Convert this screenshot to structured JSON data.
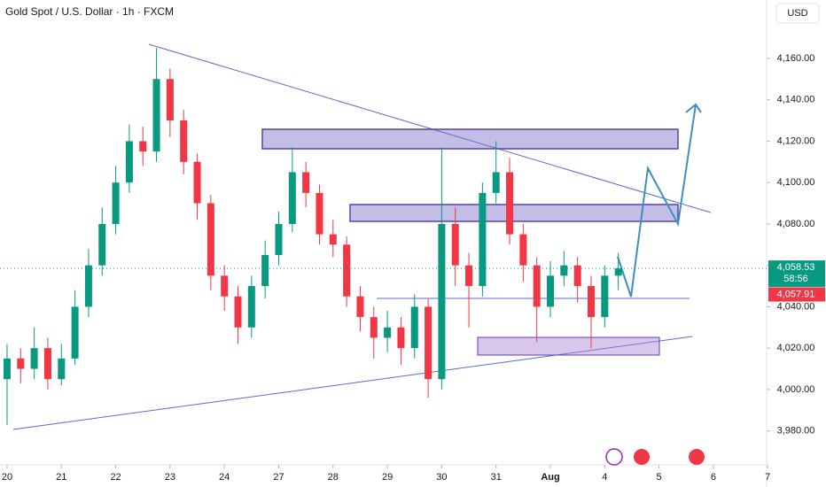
{
  "chart_data": {
    "type": "candlestick",
    "title": "Gold Spot / U.S. Dollar · 1h · FXCM",
    "currency": "USD",
    "up_color": "#089981",
    "down_color": "#f23645",
    "grid": false,
    "x": [
      0,
      0.25,
      0.5,
      0.75,
      1,
      1.25,
      1.5,
      1.75,
      2,
      2.25,
      2.5,
      2.75,
      3,
      3.25,
      3.5,
      3.75,
      4,
      4.25,
      4.5,
      4.75,
      5,
      5.25,
      5.5,
      5.75,
      6,
      6.25,
      6.5,
      6.75,
      7,
      7.25,
      7.5,
      7.75,
      8,
      8.25,
      8.5,
      8.75,
      9,
      9.25,
      9.5,
      9.75,
      10,
      10.25,
      10.5,
      10.75,
      11,
      11.25
    ],
    "open": [
      4005,
      4015,
      4010,
      4020,
      4005,
      4015,
      4040,
      4060,
      4080,
      4100,
      4120,
      4115,
      4150,
      4130,
      4110,
      4090,
      4055,
      4045,
      4030,
      4050,
      4065,
      4080,
      4105,
      4095,
      4075,
      4070,
      4045,
      4035,
      4025,
      4030,
      4020,
      4040,
      4005,
      4080,
      4060,
      4050,
      4095,
      4105,
      4075,
      4060,
      4040,
      4055,
      4060,
      4050,
      4035,
      4055
    ],
    "high": [
      4022,
      4020,
      4030,
      4025,
      4022,
      4048,
      4068,
      4088,
      4108,
      4128,
      4127,
      4165,
      4155,
      4135,
      4114,
      4094,
      4060,
      4050,
      4055,
      4072,
      4086,
      4117,
      4110,
      4099,
      4082,
      4074,
      4050,
      4040,
      4038,
      4035,
      4046,
      4044,
      4117,
      4088,
      4066,
      4100,
      4120,
      4112,
      4080,
      4064,
      4062,
      4067,
      4064,
      4055,
      4060,
      4066
    ],
    "low": [
      3983,
      4003,
      4005,
      4000,
      4002,
      4012,
      4035,
      4055,
      4075,
      4095,
      4108,
      4110,
      4122,
      4104,
      4082,
      4048,
      4038,
      4022,
      4025,
      4044,
      4060,
      4076,
      4088,
      4070,
      4064,
      4040,
      4028,
      4015,
      4018,
      4012,
      4015,
      3996,
      4000,
      4050,
      4030,
      4045,
      4090,
      4070,
      4052,
      4023,
      4035,
      4050,
      4042,
      4020,
      4030,
      4048
    ],
    "close": [
      4015,
      4010,
      4020,
      4005,
      4015,
      4040,
      4060,
      4080,
      4100,
      4120,
      4115,
      4150,
      4130,
      4110,
      4090,
      4055,
      4045,
      4030,
      4050,
      4065,
      4080,
      4105,
      4095,
      4075,
      4070,
      4045,
      4035,
      4025,
      4030,
      4020,
      4040,
      4005,
      4080,
      4060,
      4050,
      4095,
      4105,
      4075,
      4060,
      4040,
      4055,
      4060,
      4050,
      4035,
      4055,
      4058.53
    ],
    "xlim": [
      -0.13,
      13.98
    ],
    "xticks": [
      {
        "value": 0,
        "label": "20"
      },
      {
        "value": 1,
        "label": "21"
      },
      {
        "value": 2,
        "label": "22"
      },
      {
        "value": 3,
        "label": "23"
      },
      {
        "value": 4,
        "label": "24"
      },
      {
        "value": 5,
        "label": "27"
      },
      {
        "value": 6,
        "label": "28"
      },
      {
        "value": 7,
        "label": "29"
      },
      {
        "value": 8,
        "label": "30"
      },
      {
        "value": 9,
        "label": "31"
      },
      {
        "value": 10,
        "label": "Aug"
      },
      {
        "value": 11,
        "label": "4"
      },
      {
        "value": 12,
        "label": "5"
      },
      {
        "value": 13,
        "label": "6"
      },
      {
        "value": 14,
        "label": "7"
      }
    ],
    "ylim": [
      3963.6,
      4188.2
    ],
    "yticks": [
      {
        "value": 3980,
        "label": "3,980.00"
      },
      {
        "value": 4000,
        "label": "4,000.00"
      },
      {
        "value": 4020,
        "label": "4,020.00"
      },
      {
        "value": 4040,
        "label": "4,040.00"
      },
      {
        "value": 4060,
        "label": "4,060.00"
      },
      {
        "value": 4080,
        "label": "4,080.00"
      },
      {
        "value": 4100,
        "label": "4,100.00"
      },
      {
        "value": 4120,
        "label": "4,120.00"
      },
      {
        "value": 4140,
        "label": "4,140.00"
      },
      {
        "value": 4160,
        "label": "4,160.00"
      }
    ],
    "last_price": {
      "value": 4058.53,
      "label": "4,058.53"
    },
    "countdown": "58:56",
    "bid_price": {
      "value": 4057.91,
      "label": "4,057.91"
    }
  }
}
